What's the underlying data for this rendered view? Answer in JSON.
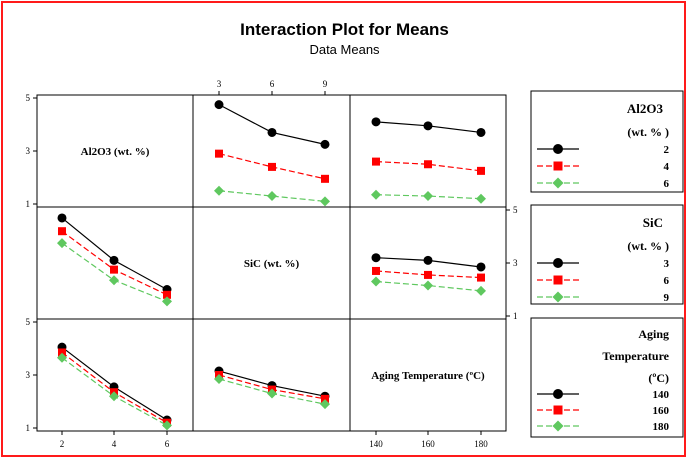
{
  "chart_data": {
    "type": "line",
    "title": "Interaction Plot for Means",
    "subtitle": "Data Means",
    "ylim": [
      1,
      5
    ],
    "y_ticks": [
      "1",
      "3",
      "5"
    ],
    "grid": false,
    "factors": [
      {
        "key": "al",
        "label": "Al2O3 (wt. %)",
        "levels": [
          2,
          4,
          6
        ],
        "tick_labels": [
          "2",
          "4",
          "6"
        ]
      },
      {
        "key": "sic",
        "label": "SiC (wt. %)",
        "levels": [
          3,
          6,
          9
        ],
        "tick_labels": [
          "3",
          "6",
          "9"
        ]
      },
      {
        "key": "temp",
        "label": "Aging Temperature (ºC)",
        "levels": [
          140,
          160,
          180
        ],
        "tick_labels": [
          "140",
          "160",
          "180"
        ]
      }
    ],
    "interactions": [
      {
        "row": 0,
        "col": 1,
        "x_factor": "sic",
        "trace_factor": "al",
        "series": [
          {
            "name": "2",
            "values": [
              4.75,
              3.7,
              3.25
            ]
          },
          {
            "name": "4",
            "values": [
              2.9,
              2.4,
              1.95
            ]
          },
          {
            "name": "6",
            "values": [
              1.5,
              1.3,
              1.1
            ]
          }
        ]
      },
      {
        "row": 0,
        "col": 2,
        "x_factor": "temp",
        "trace_factor": "al",
        "series": [
          {
            "name": "2",
            "values": [
              4.1,
              3.95,
              3.7
            ]
          },
          {
            "name": "4",
            "values": [
              2.6,
              2.5,
              2.25
            ]
          },
          {
            "name": "6",
            "values": [
              1.35,
              1.3,
              1.2
            ]
          }
        ]
      },
      {
        "row": 1,
        "col": 0,
        "x_factor": "al",
        "trace_factor": "sic",
        "series": [
          {
            "name": "3",
            "values": [
              4.7,
              3.1,
              2.0
            ]
          },
          {
            "name": "6",
            "values": [
              4.2,
              2.75,
              1.8
            ]
          },
          {
            "name": "9",
            "values": [
              3.75,
              2.35,
              1.55
            ]
          }
        ]
      },
      {
        "row": 1,
        "col": 2,
        "x_factor": "temp",
        "trace_factor": "sic",
        "series": [
          {
            "name": "3",
            "values": [
              3.2,
              3.1,
              2.85
            ]
          },
          {
            "name": "6",
            "values": [
              2.7,
              2.55,
              2.45
            ]
          },
          {
            "name": "9",
            "values": [
              2.3,
              2.15,
              1.95
            ]
          }
        ]
      },
      {
        "row": 2,
        "col": 0,
        "x_factor": "al",
        "trace_factor": "temp",
        "series": [
          {
            "name": "140",
            "values": [
              4.05,
              2.55,
              1.3
            ]
          },
          {
            "name": "160",
            "values": [
              3.85,
              2.35,
              1.2
            ]
          },
          {
            "name": "180",
            "values": [
              3.65,
              2.2,
              1.1
            ]
          }
        ]
      },
      {
        "row": 2,
        "col": 1,
        "x_factor": "sic",
        "trace_factor": "temp",
        "series": [
          {
            "name": "140",
            "values": [
              3.15,
              2.6,
              2.2
            ]
          },
          {
            "name": "160",
            "values": [
              3.0,
              2.45,
              2.1
            ]
          },
          {
            "name": "180",
            "values": [
              2.85,
              2.3,
              1.9
            ]
          }
        ]
      }
    ],
    "legends": [
      {
        "title_lines": [
          "Al2O3",
          "(wt. % )"
        ],
        "entries": [
          "2",
          "4",
          "6"
        ]
      },
      {
        "title_lines": [
          "SiC",
          "(wt. % )"
        ],
        "entries": [
          "3",
          "6",
          "9"
        ]
      },
      {
        "title_lines": [
          "Aging",
          "Temperature",
          "(ºC)"
        ],
        "entries": [
          "140",
          "160",
          "180"
        ]
      }
    ],
    "series_styles": [
      {
        "color": "#000000",
        "marker": "circle",
        "dash": "solid"
      },
      {
        "color": "#ff0000",
        "marker": "square",
        "dash": "dashed"
      },
      {
        "color": "#5fc85f",
        "marker": "diamond",
        "dash": "dashed"
      }
    ]
  }
}
